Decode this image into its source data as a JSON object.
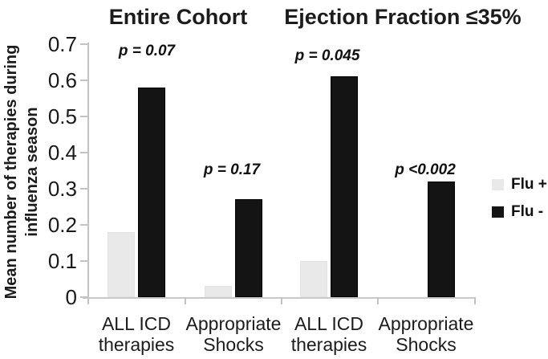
{
  "titles": {
    "left": "Entire Cohort",
    "right": "Ejection Fraction ≤35%"
  },
  "y_axis": {
    "label_line1": "Mean number of therapies during",
    "label_line2": "influenza season",
    "ticks": [
      "0.7",
      "0.6",
      "0.5",
      "0.4",
      "0.3",
      "0.2",
      "0.1",
      "0"
    ]
  },
  "legend": {
    "entries": [
      {
        "name": "Flu +",
        "color": "#e9e9e9"
      },
      {
        "name": "Flu -",
        "color": "#141414"
      }
    ]
  },
  "chart_data": {
    "type": "bar",
    "title": "",
    "section_titles": [
      "Entire Cohort",
      "Ejection Fraction ≤35%"
    ],
    "categories": [
      "ALL ICD therapies",
      "Appropriate Shocks",
      "ALL ICD therapies",
      "Appropriate Shocks"
    ],
    "category_lines": [
      [
        "ALL ICD",
        "therapies"
      ],
      [
        "Appropriate",
        "Shocks"
      ],
      [
        "ALL ICD",
        "therapies"
      ],
      [
        "Appropriate",
        "Shocks"
      ]
    ],
    "category_sections": [
      "Entire Cohort",
      "Entire Cohort",
      "Ejection Fraction ≤35%",
      "Ejection Fraction ≤35%"
    ],
    "series": [
      {
        "name": "Flu +",
        "color": "#e9e9e9",
        "values": [
          0.18,
          0.03,
          0.1,
          0.0
        ]
      },
      {
        "name": "Flu -",
        "color": "#141414",
        "values": [
          0.58,
          0.27,
          0.61,
          0.32
        ]
      }
    ],
    "annotations": [
      "p = 0.07",
      "p = 0.17",
      "p = 0.045",
      "p <0.002"
    ],
    "xlabel": "",
    "ylabel": "Mean number of therapies during influenza season",
    "ylim": [
      0,
      0.7
    ],
    "ytick_step": 0.1,
    "grid": false,
    "legend_position": "right"
  },
  "colors": {
    "flu_plus": "#e9e9e9",
    "flu_minus": "#141414",
    "axis": "#c3c3c3",
    "text": "#1a1a1a"
  }
}
